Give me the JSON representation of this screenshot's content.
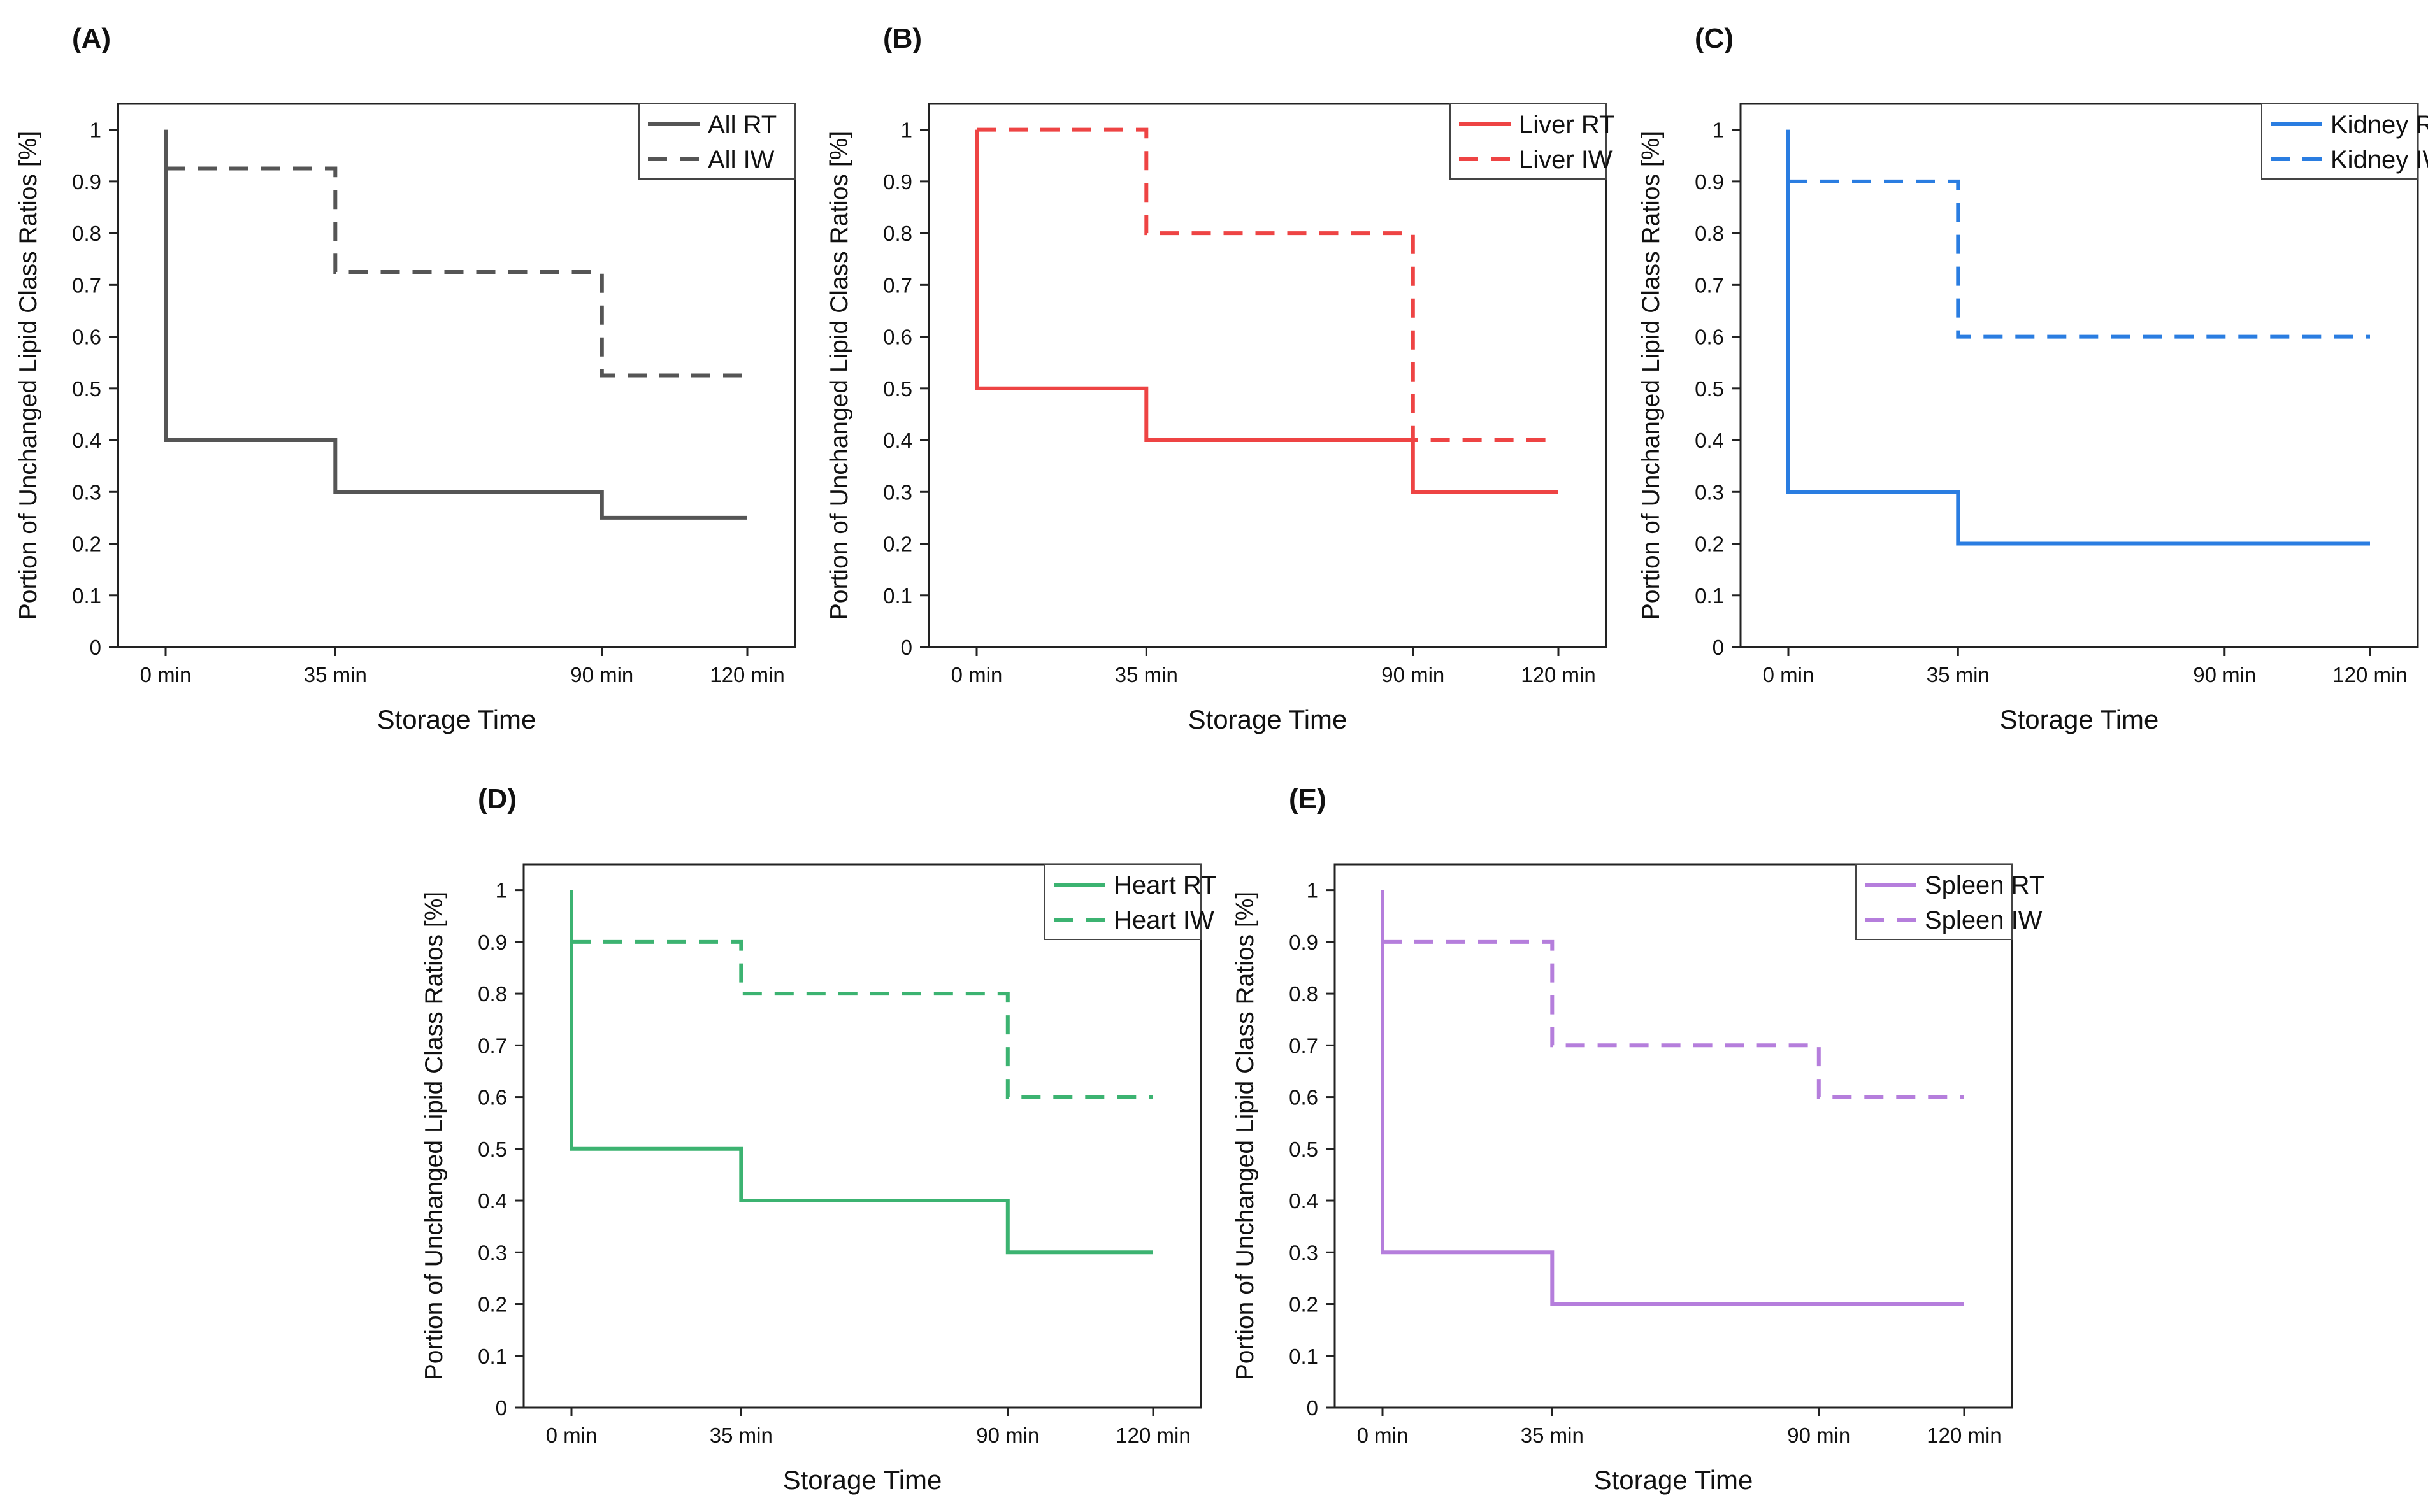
{
  "chart_data": [
    {
      "panel_label": "(A)",
      "type": "line",
      "step": true,
      "color": "#555555",
      "x_positions": [
        0,
        35,
        90,
        120
      ],
      "x_tick_labels": [
        "0 min",
        "35 min",
        "90 min",
        "120 min"
      ],
      "xlabel": "Storage Time",
      "ylabel": "Portion of Unchanged Lipid Class Ratios [%]",
      "ylim": [
        0,
        1.05
      ],
      "y_ticks": [
        0,
        0.1,
        0.2,
        0.3,
        0.4,
        0.5,
        0.6,
        0.7,
        0.8,
        0.9,
        1
      ],
      "y_tick_labels": [
        "0",
        "0.1",
        "0.2",
        "0.3",
        "0.4",
        "0.5",
        "0.6",
        "0.7",
        "0.8",
        "0.9",
        "1"
      ],
      "legend_position": "top-right",
      "series": [
        {
          "name": "All RT",
          "style": "solid",
          "start": 1,
          "values": [
            0.4,
            0.3,
            0.25,
            0.25
          ]
        },
        {
          "name": "All IW",
          "style": "dashed",
          "start": 0.925,
          "values": [
            0.925,
            0.725,
            0.525,
            0.525
          ]
        }
      ]
    },
    {
      "panel_label": "(B)",
      "type": "line",
      "step": true,
      "color": "#ee4444",
      "x_positions": [
        0,
        35,
        90,
        120
      ],
      "x_tick_labels": [
        "0 min",
        "35 min",
        "90 min",
        "120 min"
      ],
      "xlabel": "Storage Time",
      "ylabel": "Portion of Unchanged Lipid Class Ratios [%]",
      "ylim": [
        0,
        1.05
      ],
      "y_ticks": [
        0,
        0.1,
        0.2,
        0.3,
        0.4,
        0.5,
        0.6,
        0.7,
        0.8,
        0.9,
        1
      ],
      "y_tick_labels": [
        "0",
        "0.1",
        "0.2",
        "0.3",
        "0.4",
        "0.5",
        "0.6",
        "0.7",
        "0.8",
        "0.9",
        "1"
      ],
      "legend_position": "top-right",
      "series": [
        {
          "name": "Liver RT",
          "style": "solid",
          "start": 1,
          "values": [
            0.5,
            0.4,
            0.3,
            0.3
          ]
        },
        {
          "name": "Liver IW",
          "style": "dashed",
          "start": 1,
          "values": [
            1,
            0.8,
            0.4,
            0.4
          ]
        }
      ]
    },
    {
      "panel_label": "(C)",
      "type": "line",
      "step": true,
      "color": "#2a7de1",
      "x_positions": [
        0,
        35,
        90,
        120
      ],
      "x_tick_labels": [
        "0 min",
        "35 min",
        "90 min",
        "120 min"
      ],
      "xlabel": "Storage Time",
      "ylabel": "Portion of Unchanged Lipid Class Ratios [%]",
      "ylim": [
        0,
        1.05
      ],
      "y_ticks": [
        0,
        0.1,
        0.2,
        0.3,
        0.4,
        0.5,
        0.6,
        0.7,
        0.8,
        0.9,
        1
      ],
      "y_tick_labels": [
        "0",
        "0.1",
        "0.2",
        "0.3",
        "0.4",
        "0.5",
        "0.6",
        "0.7",
        "0.8",
        "0.9",
        "1"
      ],
      "legend_position": "top-right",
      "series": [
        {
          "name": "Kidney RT",
          "style": "solid",
          "start": 1,
          "values": [
            0.3,
            0.2,
            0.2,
            0.2
          ]
        },
        {
          "name": "Kidney IW",
          "style": "dashed",
          "start": 0.9,
          "values": [
            0.9,
            0.6,
            0.6,
            0.6
          ]
        }
      ]
    },
    {
      "panel_label": "(D)",
      "type": "line",
      "step": true,
      "color": "#3cb371",
      "x_positions": [
        0,
        35,
        90,
        120
      ],
      "x_tick_labels": [
        "0 min",
        "35 min",
        "90 min",
        "120 min"
      ],
      "xlabel": "Storage Time",
      "ylabel": "Portion of Unchanged Lipid Class Ratios [%]",
      "ylim": [
        0,
        1.05
      ],
      "y_ticks": [
        0,
        0.1,
        0.2,
        0.3,
        0.4,
        0.5,
        0.6,
        0.7,
        0.8,
        0.9,
        1
      ],
      "y_tick_labels": [
        "0",
        "0.1",
        "0.2",
        "0.3",
        "0.4",
        "0.5",
        "0.6",
        "0.7",
        "0.8",
        "0.9",
        "1"
      ],
      "legend_position": "top-right",
      "series": [
        {
          "name": "Heart RT",
          "style": "solid",
          "start": 1,
          "values": [
            0.5,
            0.4,
            0.3,
            0.3
          ]
        },
        {
          "name": "Heart IW",
          "style": "dashed",
          "start": 0.9,
          "values": [
            0.9,
            0.8,
            0.6,
            0.6
          ]
        }
      ]
    },
    {
      "panel_label": "(E)",
      "type": "line",
      "step": true,
      "color": "#b57edc",
      "x_positions": [
        0,
        35,
        90,
        120
      ],
      "x_tick_labels": [
        "0 min",
        "35 min",
        "90 min",
        "120 min"
      ],
      "xlabel": "Storage Time",
      "ylabel": "Portion of Unchanged Lipid Class Ratios [%]",
      "ylim": [
        0,
        1.05
      ],
      "y_ticks": [
        0,
        0.1,
        0.2,
        0.3,
        0.4,
        0.5,
        0.6,
        0.7,
        0.8,
        0.9,
        1
      ],
      "y_tick_labels": [
        "0",
        "0.1",
        "0.2",
        "0.3",
        "0.4",
        "0.5",
        "0.6",
        "0.7",
        "0.8",
        "0.9",
        "1"
      ],
      "legend_position": "top-right",
      "series": [
        {
          "name": "Spleen RT",
          "style": "solid",
          "start": 1,
          "values": [
            0.3,
            0.2,
            0.2,
            0.2
          ]
        },
        {
          "name": "Spleen IW",
          "style": "dashed",
          "start": 0.9,
          "values": [
            0.9,
            0.7,
            0.6,
            0.6
          ]
        }
      ]
    }
  ]
}
